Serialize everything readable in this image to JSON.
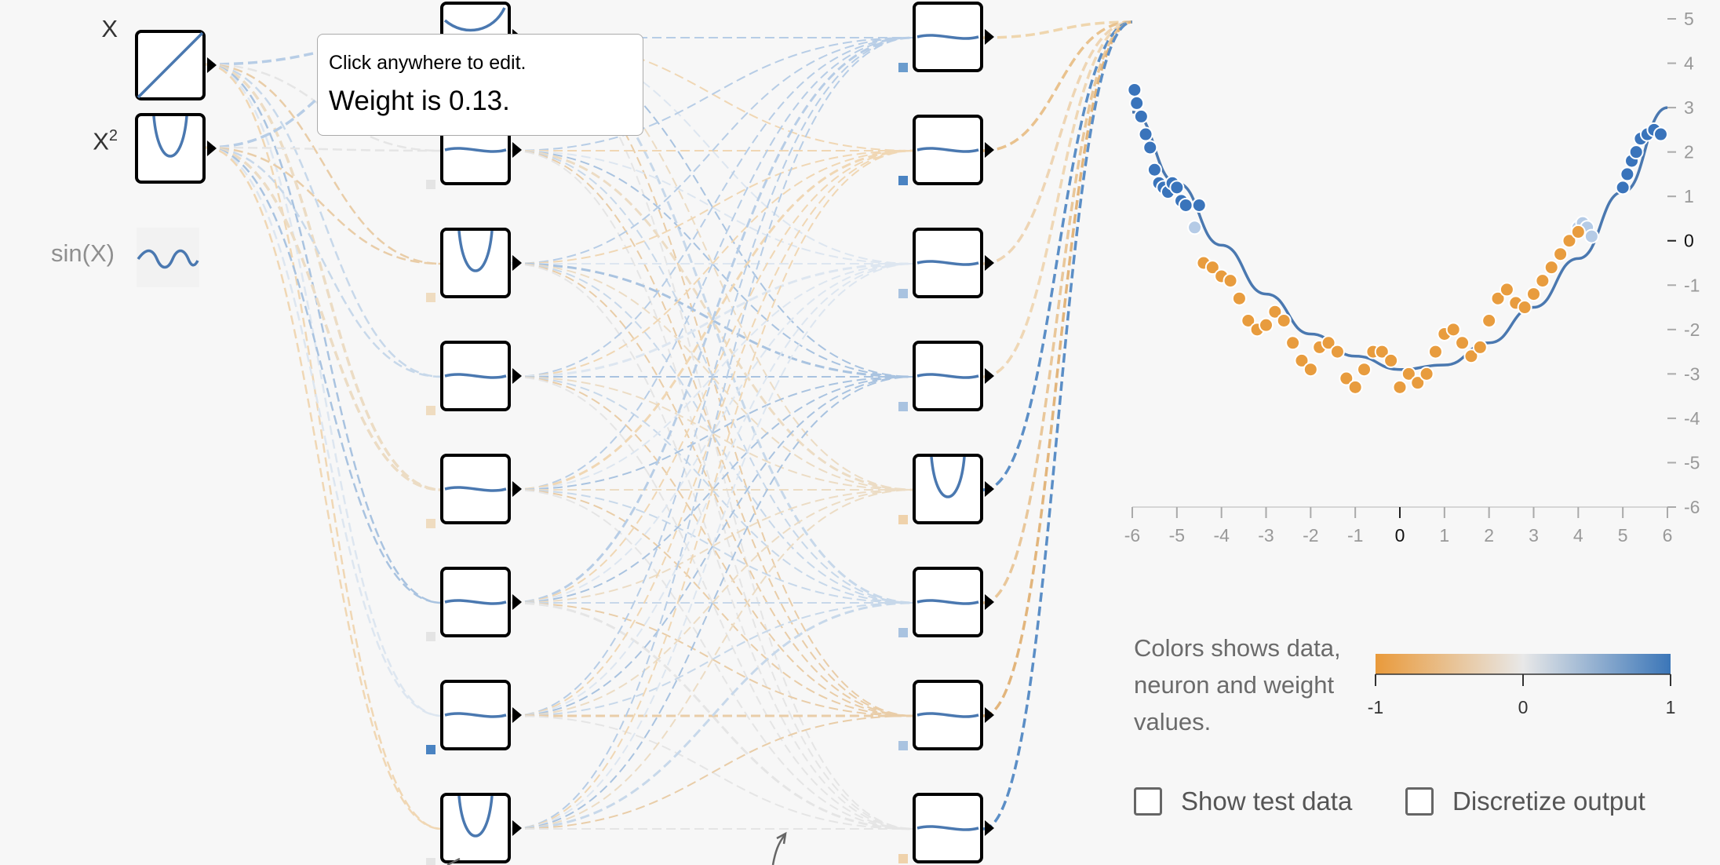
{
  "inputs": [
    {
      "label": "X",
      "enabled": true
    },
    {
      "label": "X",
      "sup": "2",
      "enabled": true
    },
    {
      "label": "sin(X)",
      "enabled": false
    }
  ],
  "tooltip": {
    "line1": "Click anywhere to edit.",
    "line2": "Weight is 0.13."
  },
  "plot": {
    "x_ticks": [
      "-6",
      "-5",
      "-4",
      "-3",
      "-2",
      "-1",
      "0",
      "1",
      "2",
      "3",
      "4",
      "5",
      "6"
    ],
    "y_ticks": [
      "5",
      "4",
      "3",
      "2",
      "1",
      "0",
      "-1",
      "-2",
      "-3",
      "-4",
      "-5",
      "-6"
    ],
    "xlim": [
      -6,
      6
    ],
    "ylim": [
      -6,
      5
    ],
    "highlight_tick": "0"
  },
  "legend": {
    "text": "Colors shows data, neuron and weight values.",
    "min_label": "-1",
    "mid_label": "0",
    "max_label": "1",
    "colors": {
      "negative": "#e99a3b",
      "neutral": "#e8e8e8",
      "positive": "#3b76b8"
    }
  },
  "options": {
    "show_test_data": {
      "label": "Show test data",
      "checked": false
    },
    "discretize_output": {
      "label": "Discretize output",
      "checked": false
    }
  },
  "chart_data": {
    "type": "scatter",
    "xlim": [
      -6,
      6
    ],
    "ylim": [
      -6,
      5
    ],
    "fit_curve": {
      "x": [
        -6,
        -5,
        -4,
        -3,
        -2,
        -1,
        0,
        1,
        2,
        3,
        4,
        5,
        6
      ],
      "y": [
        2.9,
        1.3,
        -0.1,
        -1.2,
        -2.1,
        -2.6,
        -2.9,
        -2.8,
        -2.3,
        -1.5,
        -0.4,
        1.1,
        3.0
      ]
    },
    "series": [
      {
        "color": "positive",
        "x": [
          -5.95,
          -5.9,
          -5.8,
          -5.7,
          -5.6,
          -5.5,
          -5.4,
          -5.3,
          -5.2,
          -5.1,
          -5.0,
          -4.9,
          -4.8,
          -4.5,
          5.0,
          5.1,
          5.2,
          5.3,
          5.4,
          5.55,
          5.7,
          5.85
        ],
        "y": [
          3.4,
          3.1,
          2.8,
          2.4,
          2.1,
          1.6,
          1.3,
          1.2,
          1.1,
          1.3,
          1.2,
          0.9,
          0.8,
          0.8,
          1.2,
          1.5,
          1.8,
          2.0,
          2.3,
          2.4,
          2.5,
          2.4
        ]
      },
      {
        "color": "light-positive",
        "x": [
          -4.6,
          4.0,
          4.1,
          4.2,
          4.3
        ],
        "y": [
          0.3,
          0.3,
          0.4,
          0.3,
          0.1
        ]
      },
      {
        "color": "negative",
        "x": [
          -4.4,
          -4.2,
          -4.0,
          -3.8,
          -3.6,
          -3.4,
          -3.2,
          -3.0,
          -2.8,
          -2.6,
          -2.4,
          -2.2,
          -2.0,
          -1.8,
          -1.6,
          -1.4,
          -1.2,
          -1.0,
          -0.8,
          -0.6,
          -0.4,
          -0.2,
          0.0,
          0.2,
          0.4,
          0.6,
          0.8,
          1.0,
          1.2,
          1.4,
          1.6,
          1.8,
          2.0,
          2.2,
          2.4,
          2.6,
          2.8,
          3.0,
          3.2,
          3.4,
          3.6,
          3.8,
          4.0
        ],
        "y": [
          -0.5,
          -0.6,
          -0.8,
          -0.9,
          -1.3,
          -1.8,
          -2.0,
          -1.9,
          -1.6,
          -1.8,
          -2.3,
          -2.7,
          -2.9,
          -2.4,
          -2.3,
          -2.5,
          -3.1,
          -3.3,
          -2.9,
          -2.5,
          -2.5,
          -2.7,
          -3.3,
          -3.0,
          -3.2,
          -3.0,
          -2.5,
          -2.1,
          -2.0,
          -2.3,
          -2.6,
          -2.4,
          -1.8,
          -1.3,
          -1.1,
          -1.4,
          -1.5,
          -1.2,
          -0.9,
          -0.6,
          -0.3,
          0.0,
          0.2
        ]
      }
    ]
  }
}
